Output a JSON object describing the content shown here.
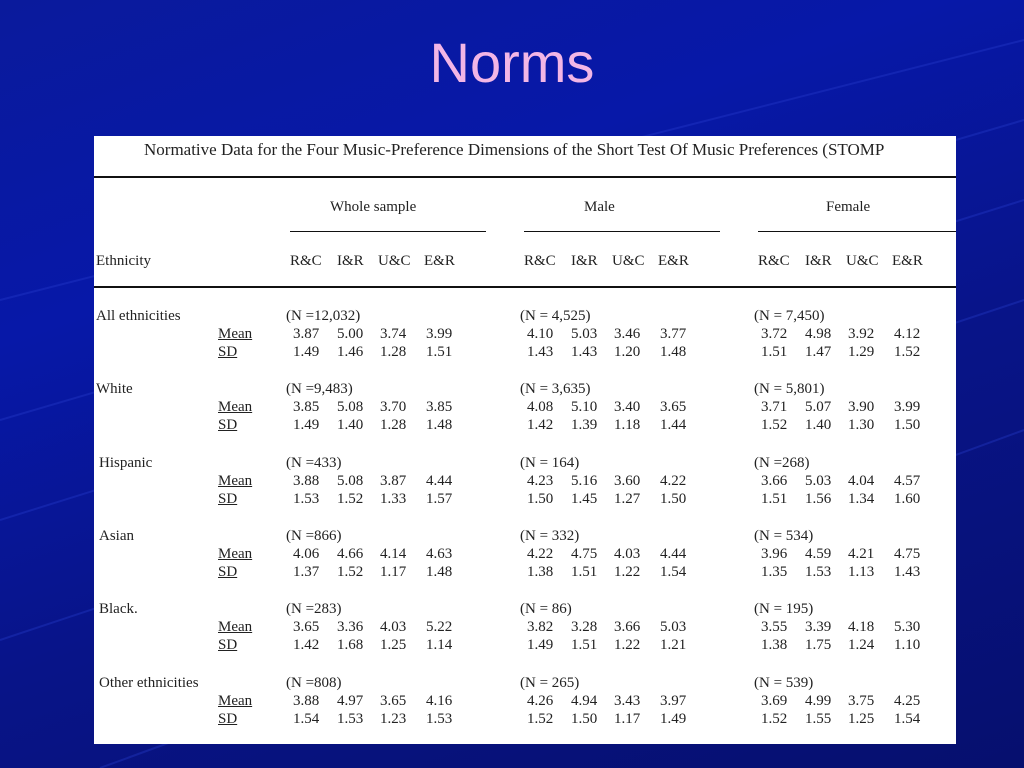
{
  "slide": {
    "title": "Norms"
  },
  "table": {
    "caption": "Normative Data for the Four Music-Preference Dimensions of the Short Test Of Music Preferences (STOMP",
    "row_header": "Ethnicity",
    "groups": [
      "Whole sample",
      "Male",
      "Female"
    ],
    "dimensions": [
      "R&C",
      "I&R",
      "U&C",
      "E&R"
    ],
    "stat_labels": {
      "mean": "Mean",
      "sd": "SD"
    },
    "rows": [
      {
        "ethnicity": "All ethnicities",
        "n": [
          "(N =12,032)",
          "(N = 4,525)",
          "(N = 7,450)"
        ],
        "mean": [
          [
            "3.87",
            "5.00",
            "3.74",
            "3.99"
          ],
          [
            "4.10",
            "5.03",
            "3.46",
            "3.77"
          ],
          [
            "3.72",
            "4.98",
            "3.92",
            "4.12"
          ]
        ],
        "sd": [
          [
            "1.49",
            "1.46",
            "1.28",
            "1.51"
          ],
          [
            "1.43",
            "1.43",
            "1.20",
            "1.48"
          ],
          [
            "1.51",
            "1.47",
            "1.29",
            "1.52"
          ]
        ]
      },
      {
        "ethnicity": "White",
        "n": [
          "(N =9,483)",
          "(N = 3,635)",
          "(N = 5,801)"
        ],
        "mean": [
          [
            "3.85",
            "5.08",
            "3.70",
            "3.85"
          ],
          [
            "4.08",
            "5.10",
            "3.40",
            "3.65"
          ],
          [
            "3.71",
            "5.07",
            "3.90",
            "3.99"
          ]
        ],
        "sd": [
          [
            "1.49",
            "1.40",
            "1.28",
            "1.48"
          ],
          [
            "1.42",
            "1.39",
            "1.18",
            "1.44"
          ],
          [
            "1.52",
            "1.40",
            "1.30",
            "1.50"
          ]
        ]
      },
      {
        "ethnicity": "Hispanic",
        "n": [
          "(N =433)",
          "(N = 164)",
          "(N =268)"
        ],
        "mean": [
          [
            "3.88",
            "5.08",
            "3.87",
            "4.44"
          ],
          [
            "4.23",
            "5.16",
            "3.60",
            "4.22"
          ],
          [
            "3.66",
            "5.03",
            "4.04",
            "4.57"
          ]
        ],
        "sd": [
          [
            "1.53",
            "1.52",
            "1.33",
            "1.57"
          ],
          [
            "1.50",
            "1.45",
            "1.27",
            "1.50"
          ],
          [
            "1.51",
            "1.56",
            "1.34",
            "1.60"
          ]
        ]
      },
      {
        "ethnicity": "Asian",
        "n": [
          "(N =866)",
          "(N = 332)",
          "(N = 534)"
        ],
        "mean": [
          [
            "4.06",
            "4.66",
            "4.14",
            "4.63"
          ],
          [
            "4.22",
            "4.75",
            "4.03",
            "4.44"
          ],
          [
            "3.96",
            "4.59",
            "4.21",
            "4.75"
          ]
        ],
        "sd": [
          [
            "1.37",
            "1.52",
            "1.17",
            "1.48"
          ],
          [
            "1.38",
            "1.51",
            "1.22",
            "1.54"
          ],
          [
            "1.35",
            "1.53",
            "1.13",
            "1.43"
          ]
        ]
      },
      {
        "ethnicity": "Black.",
        "n": [
          "(N =283)",
          "(N = 86)",
          "(N = 195)"
        ],
        "mean": [
          [
            "3.65",
            "3.36",
            "4.03",
            "5.22"
          ],
          [
            "3.82",
            "3.28",
            "3.66",
            "5.03"
          ],
          [
            "3.55",
            "3.39",
            "4.18",
            "5.30"
          ]
        ],
        "sd": [
          [
            "1.42",
            "1.68",
            "1.25",
            "1.14"
          ],
          [
            "1.49",
            "1.51",
            "1.22",
            "1.21"
          ],
          [
            "1.38",
            "1.75",
            "1.24",
            "1.10"
          ]
        ]
      },
      {
        "ethnicity": "Other ethnicities",
        "n": [
          "(N =808)",
          "(N = 265)",
          "(N = 539)"
        ],
        "mean": [
          [
            "3.88",
            "4.97",
            "3.65",
            "4.16"
          ],
          [
            "4.26",
            "4.94",
            "3.43",
            "3.97"
          ],
          [
            "3.69",
            "4.99",
            "3.75",
            "4.25"
          ]
        ],
        "sd": [
          [
            "1.54",
            "1.53",
            "1.23",
            "1.53"
          ],
          [
            "1.52",
            "1.50",
            "1.17",
            "1.49"
          ],
          [
            "1.52",
            "1.55",
            "1.25",
            "1.54"
          ]
        ]
      }
    ]
  }
}
